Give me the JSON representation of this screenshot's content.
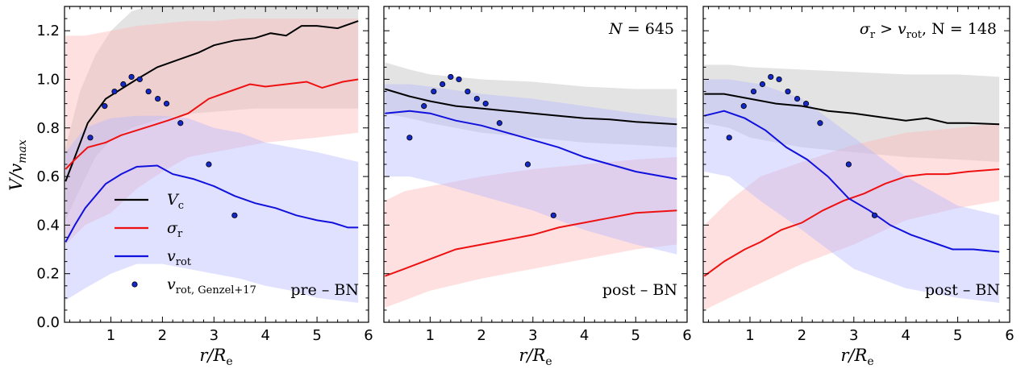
{
  "chart_data": {
    "type": "line",
    "shared": {
      "xlabel": "r/R_e",
      "ylabel": "V/v_max",
      "xlim": [
        0.1,
        6.0
      ],
      "ylim": [
        0.0,
        1.3
      ],
      "xticks": [
        1,
        2,
        3,
        4,
        5,
        6
      ],
      "yticks": [
        0.0,
        0.2,
        0.4,
        0.6,
        0.8,
        1.0,
        1.2
      ],
      "ytick_labels": [
        "0.0",
        "0.2",
        "0.4",
        "0.6",
        "0.8",
        "1.0",
        "1.2"
      ],
      "grid": false,
      "colors": {
        "Vc": "#000000",
        "sigma_r": "#ee1111",
        "v_rot": "#1111dd",
        "genzel": "#1428c8",
        "band_Vc": "#c8c8c8",
        "band_sigma": "#ffb4b4",
        "band_vrot": "#b4b4ff"
      },
      "genzel": {
        "x": [
          0.6,
          0.88,
          1.07,
          1.24,
          1.4,
          1.56,
          1.73,
          1.91,
          2.08,
          2.35,
          2.9,
          3.4
        ],
        "y": [
          0.76,
          0.89,
          0.95,
          0.98,
          1.01,
          1.0,
          0.95,
          0.92,
          0.9,
          0.82,
          0.65,
          0.44
        ]
      }
    },
    "legend": {
      "placement": "lower-left of first panel",
      "entries": [
        {
          "key": "Vc",
          "main": "V",
          "sub": "c",
          "kind": "line"
        },
        {
          "key": "sigma_r",
          "main": "σ",
          "sub": "r",
          "kind": "line"
        },
        {
          "key": "v_rot",
          "main": "v",
          "sub": "rot",
          "kind": "line"
        },
        {
          "key": "genzel",
          "main": "v",
          "sub": "rot, Genzel+17",
          "kind": "marker"
        }
      ]
    },
    "panels": [
      {
        "annotation_bottom": "pre – BN",
        "annotation_top": "",
        "x": [
          0.1,
          0.3,
          0.5,
          0.9,
          1.2,
          1.5,
          2.0,
          2.5,
          3.0,
          3.5,
          4.0,
          4.5,
          5.0,
          5.5,
          5.8
        ],
        "series": [
          {
            "key": "Vc",
            "x": [
              0.12,
              0.3,
              0.55,
              0.9,
              1.2,
              1.5,
              1.9,
              2.3,
              2.7,
              3.0,
              3.4,
              3.8,
              4.1,
              4.4,
              4.7,
              5.0,
              5.4,
              5.8
            ],
            "values": [
              0.58,
              0.68,
              0.82,
              0.92,
              0.96,
              1.0,
              1.05,
              1.08,
              1.11,
              1.14,
              1.16,
              1.17,
              1.19,
              1.18,
              1.22,
              1.22,
              1.21,
              1.24
            ],
            "band_x": [
              0.12,
              0.4,
              0.7,
              1.0,
              1.4,
              2.0,
              2.6,
              3.2,
              3.8,
              4.4,
              5.0,
              5.8
            ],
            "band_lo": [
              0.42,
              0.55,
              0.68,
              0.75,
              0.8,
              0.84,
              0.86,
              0.87,
              0.88,
              0.88,
              0.88,
              0.88
            ],
            "band_hi": [
              0.72,
              0.95,
              1.1,
              1.2,
              1.28,
              1.32,
              1.33,
              1.33,
              1.33,
              1.33,
              1.33,
              1.33
            ]
          },
          {
            "key": "sigma_r",
            "x": [
              0.12,
              0.3,
              0.55,
              0.9,
              1.2,
              1.5,
              1.8,
              2.1,
              2.5,
              2.9,
              3.3,
              3.7,
              4.0,
              4.4,
              4.8,
              5.1,
              5.5,
              5.8
            ],
            "values": [
              0.63,
              0.67,
              0.72,
              0.74,
              0.77,
              0.79,
              0.81,
              0.83,
              0.86,
              0.92,
              0.95,
              0.98,
              0.97,
              0.98,
              0.99,
              0.965,
              0.99,
              1.0
            ],
            "band_x": [
              0.12,
              0.5,
              1.0,
              1.5,
              2.0,
              2.5,
              3.0,
              3.5,
              4.0,
              4.5,
              5.0,
              5.8
            ],
            "band_lo": [
              0.32,
              0.4,
              0.45,
              0.55,
              0.62,
              0.68,
              0.7,
              0.72,
              0.74,
              0.75,
              0.76,
              0.78
            ],
            "band_hi": [
              1.18,
              1.18,
              1.2,
              1.22,
              1.23,
              1.24,
              1.24,
              1.25,
              1.25,
              1.25,
              1.25,
              1.25
            ]
          },
          {
            "key": "v_rot",
            "x": [
              0.12,
              0.3,
              0.5,
              0.9,
              1.2,
              1.5,
              1.9,
              2.2,
              2.6,
              3.0,
              3.4,
              3.8,
              4.2,
              4.6,
              5.0,
              5.3,
              5.6,
              5.8
            ],
            "values": [
              0.33,
              0.4,
              0.47,
              0.57,
              0.61,
              0.64,
              0.645,
              0.61,
              0.59,
              0.56,
              0.52,
              0.49,
              0.47,
              0.44,
              0.42,
              0.41,
              0.39,
              0.39
            ],
            "band_x": [
              0.12,
              0.5,
              1.0,
              1.5,
              2.0,
              2.5,
              3.0,
              3.5,
              4.0,
              4.5,
              5.0,
              5.8
            ],
            "band_lo": [
              0.09,
              0.14,
              0.2,
              0.24,
              0.24,
              0.22,
              0.2,
              0.18,
              0.15,
              0.13,
              0.1,
              0.08
            ],
            "band_hi": [
              0.7,
              0.8,
              0.84,
              0.85,
              0.85,
              0.84,
              0.8,
              0.78,
              0.74,
              0.72,
              0.7,
              0.66
            ]
          }
        ]
      },
      {
        "annotation_bottom": "post – BN",
        "annotation_top": "N = 645",
        "series": [
          {
            "key": "Vc",
            "x": [
              0.12,
              0.6,
              1.0,
              1.5,
              2.0,
              2.5,
              3.0,
              3.5,
              4.0,
              4.5,
              5.0,
              5.8
            ],
            "values": [
              0.96,
              0.93,
              0.91,
              0.89,
              0.88,
              0.87,
              0.86,
              0.85,
              0.84,
              0.835,
              0.825,
              0.815
            ],
            "band_x": [
              0.12,
              0.6,
              1.0,
              2.0,
              3.0,
              4.0,
              5.0,
              5.8
            ],
            "band_lo": [
              0.86,
              0.84,
              0.82,
              0.78,
              0.76,
              0.74,
              0.73,
              0.72
            ],
            "band_hi": [
              1.07,
              1.04,
              1.02,
              1.0,
              0.99,
              0.97,
              0.96,
              0.96
            ]
          },
          {
            "key": "sigma_r",
            "x": [
              0.12,
              0.5,
              1.0,
              1.5,
              2.0,
              2.5,
              3.0,
              3.5,
              4.0,
              4.5,
              5.0,
              5.8
            ],
            "values": [
              0.19,
              0.22,
              0.26,
              0.3,
              0.32,
              0.34,
              0.36,
              0.39,
              0.41,
              0.43,
              0.45,
              0.46
            ],
            "band_x": [
              0.12,
              0.5,
              1.0,
              2.0,
              3.0,
              4.0,
              5.0,
              5.8
            ],
            "band_lo": [
              0.06,
              0.09,
              0.13,
              0.18,
              0.22,
              0.26,
              0.3,
              0.32
            ],
            "band_hi": [
              0.5,
              0.54,
              0.56,
              0.6,
              0.63,
              0.65,
              0.67,
              0.68
            ]
          },
          {
            "key": "v_rot",
            "x": [
              0.12,
              0.6,
              1.0,
              1.5,
              2.0,
              2.5,
              3.0,
              3.5,
              4.0,
              4.5,
              5.0,
              5.8
            ],
            "values": [
              0.86,
              0.87,
              0.86,
              0.83,
              0.81,
              0.78,
              0.75,
              0.72,
              0.68,
              0.65,
              0.62,
              0.59
            ],
            "band_x": [
              0.12,
              0.6,
              1.0,
              2.0,
              3.0,
              4.0,
              5.0,
              5.8
            ],
            "band_lo": [
              0.6,
              0.6,
              0.58,
              0.52,
              0.46,
              0.38,
              0.32,
              0.28
            ],
            "band_hi": [
              0.98,
              0.98,
              0.97,
              0.94,
              0.92,
              0.89,
              0.86,
              0.84
            ]
          }
        ]
      },
      {
        "annotation_bottom": "post – BN",
        "annotation_top": "σ_r > v_rot,  N = 148",
        "series": [
          {
            "key": "Vc",
            "x": [
              0.12,
              0.5,
              1.0,
              1.5,
              2.0,
              2.5,
              3.0,
              3.5,
              4.0,
              4.4,
              4.8,
              5.2,
              5.8
            ],
            "values": [
              0.94,
              0.94,
              0.92,
              0.9,
              0.89,
              0.87,
              0.86,
              0.845,
              0.83,
              0.84,
              0.82,
              0.82,
              0.815
            ],
            "band_x": [
              0.12,
              0.6,
              1.0,
              2.0,
              3.0,
              4.0,
              5.0,
              5.8
            ],
            "band_lo": [
              0.82,
              0.8,
              0.76,
              0.72,
              0.7,
              0.68,
              0.67,
              0.66
            ],
            "band_hi": [
              1.06,
              1.06,
              1.05,
              1.04,
              1.03,
              1.02,
              1.02,
              1.01
            ]
          },
          {
            "key": "sigma_r",
            "x": [
              0.12,
              0.5,
              0.9,
              1.2,
              1.6,
              2.0,
              2.4,
              2.8,
              3.2,
              3.6,
              4.0,
              4.4,
              4.8,
              5.2,
              5.8
            ],
            "values": [
              0.19,
              0.25,
              0.3,
              0.33,
              0.38,
              0.41,
              0.46,
              0.5,
              0.53,
              0.57,
              0.6,
              0.61,
              0.61,
              0.62,
              0.63
            ],
            "band_x": [
              0.12,
              0.6,
              1.2,
              2.0,
              3.0,
              4.0,
              5.0,
              5.8
            ],
            "band_lo": [
              0.05,
              0.1,
              0.16,
              0.24,
              0.32,
              0.42,
              0.47,
              0.5
            ],
            "band_hi": [
              0.4,
              0.5,
              0.6,
              0.66,
              0.73,
              0.78,
              0.8,
              0.82
            ]
          },
          {
            "key": "v_rot",
            "x": [
              0.12,
              0.5,
              0.9,
              1.3,
              1.7,
              2.1,
              2.5,
              2.9,
              3.3,
              3.7,
              4.1,
              4.5,
              4.9,
              5.3,
              5.8
            ],
            "values": [
              0.85,
              0.87,
              0.84,
              0.79,
              0.72,
              0.67,
              0.6,
              0.51,
              0.46,
              0.4,
              0.36,
              0.33,
              0.3,
              0.3,
              0.29
            ],
            "band_x": [
              0.12,
              0.6,
              1.2,
              2.0,
              3.0,
              4.0,
              5.0,
              5.8
            ],
            "band_lo": [
              0.62,
              0.6,
              0.5,
              0.38,
              0.22,
              0.14,
              0.1,
              0.08
            ],
            "band_hi": [
              1.0,
              1.0,
              0.98,
              0.92,
              0.76,
              0.6,
              0.48,
              0.44
            ]
          }
        ]
      }
    ]
  }
}
